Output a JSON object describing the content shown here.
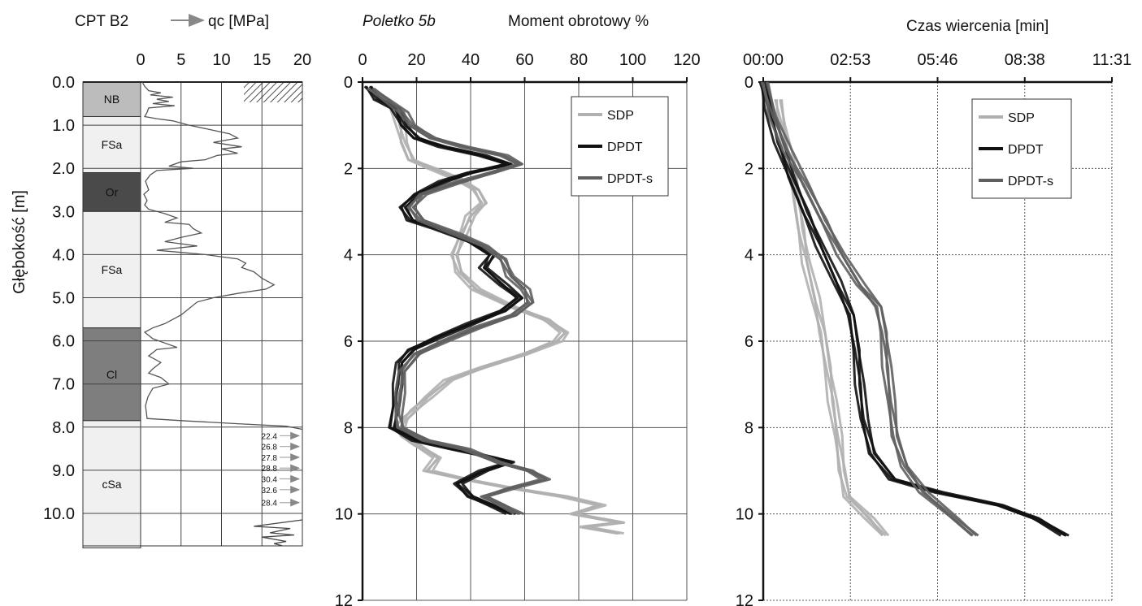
{
  "chart_data": [
    {
      "type": "line",
      "panel": "cpt",
      "title": "CPT B2",
      "legend_label": "qc [MPa]",
      "ylabel": "Głębokość [m]",
      "xlim": [
        0,
        20
      ],
      "ylim": [
        0,
        10.8
      ],
      "xticks": [
        "0",
        "5",
        "10",
        "15",
        "20"
      ],
      "yticks": [
        "0.0",
        "1.0",
        "2.0",
        "3.0",
        "4.0",
        "5.0",
        "6.0",
        "7.0",
        "8.0",
        "9.0",
        "10.0"
      ],
      "layers": [
        {
          "label": "NB",
          "top": 0.0,
          "bottom": 0.8,
          "color": "#bcbcbc"
        },
        {
          "label": "FSa",
          "top": 0.8,
          "bottom": 2.1,
          "color": "#f0f0f0"
        },
        {
          "label": "Or",
          "top": 2.1,
          "bottom": 3.0,
          "color": "#4a4a4a"
        },
        {
          "label": "FSa",
          "top": 3.0,
          "bottom": 5.7,
          "color": "#f0f0f0"
        },
        {
          "label": "Cl",
          "top": 5.7,
          "bottom": 7.85,
          "color": "#7e7e7e"
        },
        {
          "label": "cSa",
          "top": 7.85,
          "bottom": 10.8,
          "color": "#f0f0f0"
        }
      ],
      "qc_profile": [
        [
          0.2,
          0
        ],
        [
          0.5,
          0.1
        ],
        [
          1.0,
          0.2
        ],
        [
          2.5,
          0.25
        ],
        [
          1.2,
          0.3
        ],
        [
          4.0,
          0.35
        ],
        [
          2.0,
          0.4
        ],
        [
          3.5,
          0.45
        ],
        [
          1.5,
          0.5
        ],
        [
          4.2,
          0.55
        ],
        [
          1.0,
          0.6
        ],
        [
          0.8,
          0.7
        ],
        [
          0.5,
          0.8
        ],
        [
          2.0,
          0.85
        ],
        [
          4.0,
          0.9
        ],
        [
          6.0,
          1.0
        ],
        [
          8.5,
          1.1
        ],
        [
          11.0,
          1.2
        ],
        [
          12.0,
          1.3
        ],
        [
          9.0,
          1.4
        ],
        [
          12.5,
          1.5
        ],
        [
          10.0,
          1.55
        ],
        [
          12.0,
          1.65
        ],
        [
          9.5,
          1.7
        ],
        [
          8.0,
          1.8
        ],
        [
          5.0,
          1.85
        ],
        [
          3.5,
          1.95
        ],
        [
          6.5,
          2.0
        ],
        [
          2.0,
          2.05
        ],
        [
          1.2,
          2.15
        ],
        [
          0.6,
          2.3
        ],
        [
          1.0,
          2.5
        ],
        [
          0.4,
          2.6
        ],
        [
          0.8,
          2.75
        ],
        [
          0.5,
          2.85
        ],
        [
          1.0,
          2.95
        ],
        [
          2.0,
          3.0
        ],
        [
          3.0,
          3.05
        ],
        [
          4.5,
          3.15
        ],
        [
          3.0,
          3.25
        ],
        [
          6.0,
          3.3
        ],
        [
          6.5,
          3.4
        ],
        [
          7.5,
          3.5
        ],
        [
          5.0,
          3.6
        ],
        [
          3.0,
          3.7
        ],
        [
          5.0,
          3.75
        ],
        [
          7.0,
          3.8
        ],
        [
          4.5,
          3.85
        ],
        [
          2.0,
          3.9
        ],
        [
          5.0,
          3.95
        ],
        [
          8.0,
          4.0
        ],
        [
          10.0,
          4.05
        ],
        [
          12.0,
          4.1
        ],
        [
          13.0,
          4.2
        ],
        [
          12.5,
          4.3
        ],
        [
          14.0,
          4.4
        ],
        [
          15.0,
          4.55
        ],
        [
          16.5,
          4.7
        ],
        [
          15.5,
          4.8
        ],
        [
          12.0,
          4.9
        ],
        [
          9.0,
          5.0
        ],
        [
          7.0,
          5.1
        ],
        [
          6.0,
          5.25
        ],
        [
          5.0,
          5.4
        ],
        [
          4.0,
          5.5
        ],
        [
          3.0,
          5.6
        ],
        [
          1.5,
          5.7
        ],
        [
          0.5,
          5.8
        ],
        [
          1.5,
          5.95
        ],
        [
          3.0,
          6.05
        ],
        [
          4.5,
          6.15
        ],
        [
          2.0,
          6.2
        ],
        [
          1.0,
          6.35
        ],
        [
          2.5,
          6.5
        ],
        [
          1.5,
          6.65
        ],
        [
          1.0,
          6.75
        ],
        [
          2.5,
          6.85
        ],
        [
          3.5,
          7.0
        ],
        [
          1.5,
          7.1
        ],
        [
          0.9,
          7.3
        ],
        [
          0.6,
          7.5
        ],
        [
          0.7,
          7.65
        ],
        [
          0.8,
          7.8
        ],
        [
          5.0,
          7.85
        ],
        [
          12.0,
          7.92
        ],
        [
          18.0,
          7.98
        ],
        [
          20.0,
          8.05
        ]
      ],
      "qc_profile_bottom": [
        [
          20.0,
          10.15
        ],
        [
          14.0,
          10.3
        ],
        [
          18.5,
          10.35
        ],
        [
          16.0,
          10.45
        ],
        [
          19.0,
          10.5
        ],
        [
          15.0,
          10.55
        ],
        [
          18.0,
          10.65
        ],
        [
          16.5,
          10.7
        ],
        [
          17.5,
          10.75
        ]
      ],
      "offscale_values": [
        "22.4",
        "26.8",
        "27.8",
        "28.8",
        "30.4",
        "32.6",
        "28.4"
      ],
      "offscale_depths": [
        8.2,
        8.45,
        8.7,
        8.95,
        9.2,
        9.45,
        9.75
      ]
    },
    {
      "type": "line",
      "panel": "torque",
      "title": "Poletko 5b",
      "xlabel": "Moment obrotowy %",
      "xlim": [
        0,
        120
      ],
      "ylim": [
        0,
        12
      ],
      "xticks": [
        "0",
        "20",
        "40",
        "60",
        "80",
        "100",
        "120"
      ],
      "yticks": [
        "0",
        "2",
        "4",
        "6",
        "8",
        "10",
        "12"
      ],
      "legend": [
        "SDP",
        "DPDT",
        "DPDT-s"
      ],
      "series": [
        {
          "name": "SDP",
          "color": "#b0b0b0",
          "points": [
            [
              5,
              0.4
            ],
            [
              12,
              0.6
            ],
            [
              14,
              1.0
            ],
            [
              15,
              1.4
            ],
            [
              18,
              1.8
            ],
            [
              26,
              2.0
            ],
            [
              35,
              2.25
            ],
            [
              42,
              2.5
            ],
            [
              45,
              2.8
            ],
            [
              40,
              3.1
            ],
            [
              37,
              3.5
            ],
            [
              34,
              4.0
            ],
            [
              36,
              4.4
            ],
            [
              42,
              4.8
            ],
            [
              55,
              5.2
            ],
            [
              68,
              5.5
            ],
            [
              75,
              5.8
            ],
            [
              72,
              6.0
            ],
            [
              60,
              6.3
            ],
            [
              45,
              6.6
            ],
            [
              32,
              6.9
            ],
            [
              24,
              7.3
            ],
            [
              19,
              7.6
            ],
            [
              16,
              7.8
            ],
            [
              14,
              8.0
            ],
            [
              15,
              8.2
            ],
            [
              20,
              8.4
            ],
            [
              28,
              8.7
            ],
            [
              24,
              9.0
            ],
            [
              38,
              9.2
            ],
            [
              55,
              9.4
            ],
            [
              75,
              9.6
            ],
            [
              88,
              9.8
            ],
            [
              78,
              10.0
            ],
            [
              96,
              10.2
            ],
            [
              82,
              10.3
            ],
            [
              95,
              10.45
            ]
          ]
        },
        {
          "name": "DPDT",
          "color": "#111111",
          "points": [
            [
              2,
              0.1
            ],
            [
              6,
              0.4
            ],
            [
              12,
              0.6
            ],
            [
              15,
              1.0
            ],
            [
              20,
              1.3
            ],
            [
              30,
              1.5
            ],
            [
              44,
              1.7
            ],
            [
              54,
              1.9
            ],
            [
              40,
              2.1
            ],
            [
              30,
              2.3
            ],
            [
              20,
              2.6
            ],
            [
              15,
              2.9
            ],
            [
              18,
              3.2
            ],
            [
              28,
              3.4
            ],
            [
              40,
              3.7
            ],
            [
              48,
              4.0
            ],
            [
              45,
              4.3
            ],
            [
              52,
              4.7
            ],
            [
              58,
              5.0
            ],
            [
              52,
              5.3
            ],
            [
              40,
              5.6
            ],
            [
              28,
              5.9
            ],
            [
              18,
              6.2
            ],
            [
              14,
              6.5
            ],
            [
              13,
              7.0
            ],
            [
              12,
              7.5
            ],
            [
              11,
              8.0
            ],
            [
              20,
              8.3
            ],
            [
              34,
              8.5
            ],
            [
              48,
              8.7
            ],
            [
              55,
              8.8
            ],
            [
              45,
              9.0
            ],
            [
              35,
              9.3
            ],
            [
              40,
              9.6
            ],
            [
              48,
              9.8
            ],
            [
              55,
              10.0
            ]
          ]
        },
        {
          "name": "DPDT-s",
          "color": "#5f5f5f",
          "points": [
            [
              3,
              0.15
            ],
            [
              9,
              0.4
            ],
            [
              15,
              0.7
            ],
            [
              18,
              1.0
            ],
            [
              26,
              1.3
            ],
            [
              38,
              1.5
            ],
            [
              52,
              1.7
            ],
            [
              58,
              1.9
            ],
            [
              48,
              2.1
            ],
            [
              34,
              2.35
            ],
            [
              22,
              2.6
            ],
            [
              18,
              2.9
            ],
            [
              22,
              3.2
            ],
            [
              34,
              3.5
            ],
            [
              45,
              3.8
            ],
            [
              52,
              4.1
            ],
            [
              55,
              4.5
            ],
            [
              60,
              4.8
            ],
            [
              62,
              5.1
            ],
            [
              56,
              5.4
            ],
            [
              42,
              5.7
            ],
            [
              30,
              6.0
            ],
            [
              20,
              6.3
            ],
            [
              15,
              6.7
            ],
            [
              14,
              7.2
            ],
            [
              13,
              7.7
            ],
            [
              14,
              8.0
            ],
            [
              24,
              8.3
            ],
            [
              38,
              8.5
            ],
            [
              50,
              8.8
            ],
            [
              62,
              9.0
            ],
            [
              68,
              9.2
            ],
            [
              55,
              9.4
            ],
            [
              45,
              9.6
            ],
            [
              52,
              9.8
            ],
            [
              58,
              10.0
            ]
          ]
        }
      ]
    },
    {
      "type": "line",
      "panel": "time",
      "title": "Czas wiercenia [min]",
      "xlim": [
        0,
        11.52
      ],
      "ylim": [
        0,
        12
      ],
      "xticks": [
        "00:00",
        "02:53",
        "05:46",
        "08:38",
        "11:31"
      ],
      "yticks": [
        "0",
        "2",
        "4",
        "6",
        "8",
        "10",
        "12"
      ],
      "legend": [
        "SDP",
        "DPDT",
        "DPDT-s"
      ],
      "series": [
        {
          "name": "SDP",
          "color": "#b0b0b0",
          "points": [
            [
              0.5,
              0.4
            ],
            [
              0.65,
              1.0
            ],
            [
              0.85,
              1.8
            ],
            [
              1.05,
              2.6
            ],
            [
              1.25,
              3.4
            ],
            [
              1.45,
              4.2
            ],
            [
              1.7,
              5.0
            ],
            [
              1.95,
              5.8
            ],
            [
              2.15,
              6.6
            ],
            [
              2.3,
              7.4
            ],
            [
              2.45,
              8.2
            ],
            [
              2.6,
              9.0
            ],
            [
              2.8,
              9.6
            ],
            [
              3.5,
              10.1
            ],
            [
              4.0,
              10.5
            ]
          ]
        },
        {
          "name": "DPDT",
          "color": "#111111",
          "points": [
            [
              0,
              0
            ],
            [
              0.2,
              0.6
            ],
            [
              0.5,
              1.4
            ],
            [
              0.9,
              2.2
            ],
            [
              1.4,
              3.0
            ],
            [
              1.9,
              3.8
            ],
            [
              2.4,
              4.6
            ],
            [
              2.9,
              5.4
            ],
            [
              3.1,
              6.2
            ],
            [
              3.2,
              7.0
            ],
            [
              3.3,
              7.8
            ],
            [
              3.6,
              8.6
            ],
            [
              4.3,
              9.2
            ],
            [
              5.8,
              9.5
            ],
            [
              7.8,
              9.8
            ],
            [
              9.0,
              10.1
            ],
            [
              10.0,
              10.5
            ]
          ]
        },
        {
          "name": "DPDT-s",
          "color": "#5f5f5f",
          "points": [
            [
              0.05,
              0
            ],
            [
              0.35,
              0.8
            ],
            [
              0.8,
              1.6
            ],
            [
              1.4,
              2.4
            ],
            [
              2.0,
              3.2
            ],
            [
              2.6,
              4.0
            ],
            [
              3.2,
              4.7
            ],
            [
              3.8,
              5.2
            ],
            [
              4.0,
              5.8
            ],
            [
              4.1,
              6.6
            ],
            [
              4.2,
              7.4
            ],
            [
              4.35,
              8.2
            ],
            [
              4.7,
              8.9
            ],
            [
              5.3,
              9.5
            ],
            [
              6.3,
              10.1
            ],
            [
              7.0,
              10.5
            ]
          ]
        }
      ]
    }
  ]
}
